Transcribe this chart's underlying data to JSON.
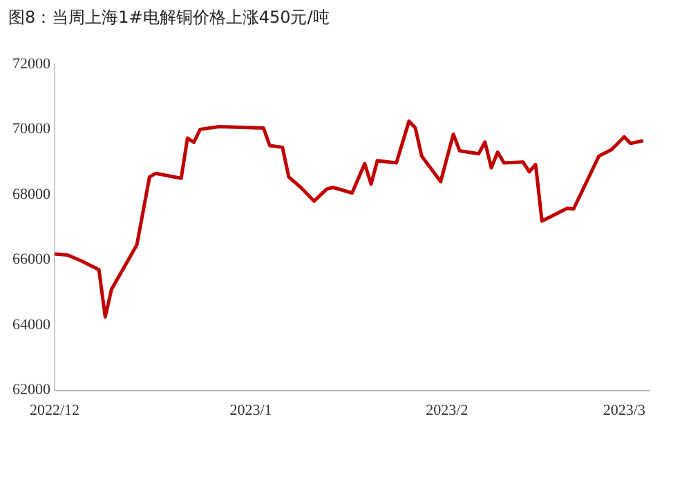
{
  "chart_data": {
    "type": "line",
    "title": "图8：当周上海1#电解铜价格上涨450元/吨",
    "x": [
      "2022-12-01",
      "2022-12-03",
      "2022-12-05",
      "2022-12-08",
      "2022-12-09",
      "2022-12-10",
      "2022-12-14",
      "2022-12-16",
      "2022-12-17",
      "2022-12-21",
      "2022-12-22",
      "2022-12-23",
      "2022-12-24",
      "2022-12-27",
      "2023-01-03",
      "2023-01-04",
      "2023-01-06",
      "2023-01-07",
      "2023-01-09",
      "2023-01-11",
      "2023-01-13",
      "2023-01-14",
      "2023-01-17",
      "2023-01-19",
      "2023-01-20",
      "2023-01-21",
      "2023-01-24",
      "2023-01-26",
      "2023-01-27",
      "2023-01-28",
      "2023-01-31",
      "2023-02-02",
      "2023-02-03",
      "2023-02-06",
      "2023-02-07",
      "2023-02-08",
      "2023-02-09",
      "2023-02-10",
      "2023-02-13",
      "2023-02-14",
      "2023-02-15",
      "2023-02-16",
      "2023-02-20",
      "2023-02-21",
      "2023-02-25",
      "2023-02-27",
      "2023-03-01",
      "2023-03-02",
      "2023-03-04"
    ],
    "series": [
      {
        "color": "#c00000",
        "values": [
          66180,
          66150,
          65990,
          65700,
          64250,
          65100,
          66460,
          68540,
          68650,
          68500,
          69730,
          69600,
          70000,
          70080,
          70040,
          69500,
          69450,
          68540,
          68200,
          67800,
          68170,
          68220,
          68050,
          68950,
          68320,
          69040,
          68970,
          70250,
          70040,
          69180,
          68400,
          69850,
          69340,
          69250,
          69610,
          68820,
          69300,
          68970,
          69000,
          68700,
          68920,
          67190,
          67580,
          67560,
          69180,
          69380,
          69770,
          69570,
          69650
        ]
      }
    ],
    "xlim": [
      "2022-12-01",
      "2023-03-05"
    ],
    "xticks": [
      {
        "value": "2022-12-01",
        "label": "2022/12"
      },
      {
        "value": "2023-01-01",
        "label": "2023/1"
      },
      {
        "value": "2023-02-01",
        "label": "2023/2"
      },
      {
        "value": "2023-03-01",
        "label": "2023/3"
      }
    ],
    "ylim": [
      62000,
      72000
    ],
    "yticks": [
      62000,
      64000,
      66000,
      68000,
      70000,
      72000
    ],
    "grid": false,
    "legend": false,
    "marker": "none",
    "line_style": "solid"
  }
}
